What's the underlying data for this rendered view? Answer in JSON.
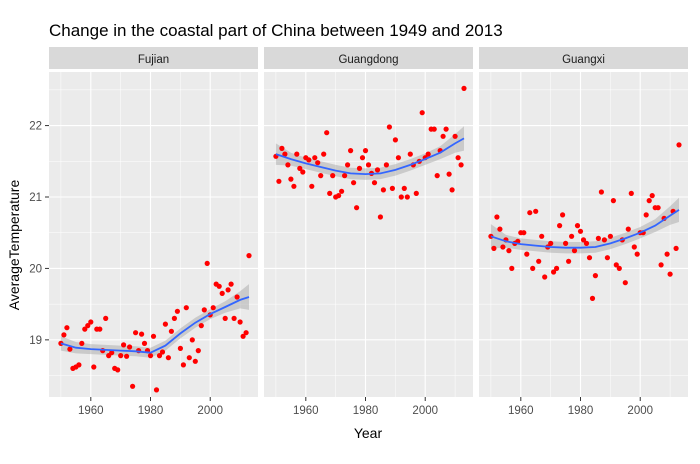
{
  "chart_data": {
    "type": "scatter",
    "title": "Change in the coastal part of China between 1949 and 2013",
    "xlabel": "Year",
    "ylabel": "AverageTemperature",
    "xlim": [
      1946,
      2016
    ],
    "ylim": [
      18.2,
      22.75
    ],
    "x_ticks": [
      1960,
      1980,
      2000
    ],
    "y_ticks": [
      19,
      20,
      21,
      22
    ],
    "grid": true,
    "legend": "none",
    "point_color": "#ff0000",
    "smooth_color": "#3366ff",
    "band_color": "#999999",
    "panel_bg": "#ebebeb",
    "strip_bg": "#d9d9d9",
    "facets": [
      {
        "name": "Fujian",
        "points": [
          [
            1950,
            18.95
          ],
          [
            1951,
            19.07
          ],
          [
            1952,
            19.17
          ],
          [
            1953,
            18.87
          ],
          [
            1954,
            18.6
          ],
          [
            1955,
            18.62
          ],
          [
            1956,
            18.65
          ],
          [
            1957,
            18.95
          ],
          [
            1958,
            19.15
          ],
          [
            1959,
            19.2
          ],
          [
            1960,
            19.25
          ],
          [
            1961,
            18.62
          ],
          [
            1962,
            19.15
          ],
          [
            1963,
            19.15
          ],
          [
            1964,
            18.85
          ],
          [
            1965,
            19.3
          ],
          [
            1966,
            18.78
          ],
          [
            1967,
            18.82
          ],
          [
            1968,
            18.6
          ],
          [
            1969,
            18.58
          ],
          [
            1970,
            18.78
          ],
          [
            1971,
            18.93
          ],
          [
            1972,
            18.77
          ],
          [
            1973,
            18.9
          ],
          [
            1974,
            18.35
          ],
          [
            1975,
            19.1
          ],
          [
            1976,
            18.85
          ],
          [
            1977,
            19.08
          ],
          [
            1978,
            18.95
          ],
          [
            1979,
            18.85
          ],
          [
            1980,
            18.78
          ],
          [
            1981,
            19.05
          ],
          [
            1982,
            18.3
          ],
          [
            1983,
            18.78
          ],
          [
            1984,
            18.83
          ],
          [
            1985,
            19.22
          ],
          [
            1986,
            18.75
          ],
          [
            1987,
            19.12
          ],
          [
            1988,
            19.3
          ],
          [
            1989,
            19.4
          ],
          [
            1990,
            18.88
          ],
          [
            1991,
            18.65
          ],
          [
            1992,
            19.45
          ],
          [
            1993,
            18.75
          ],
          [
            1994,
            19.0
          ],
          [
            1995,
            18.7
          ],
          [
            1996,
            18.85
          ],
          [
            1997,
            19.2
          ],
          [
            1998,
            19.42
          ],
          [
            1999,
            20.07
          ],
          [
            2000,
            19.35
          ],
          [
            2001,
            19.45
          ],
          [
            2002,
            19.78
          ],
          [
            2003,
            19.75
          ],
          [
            2004,
            19.65
          ],
          [
            2005,
            19.3
          ],
          [
            2006,
            19.7
          ],
          [
            2007,
            19.78
          ],
          [
            2008,
            19.3
          ],
          [
            2009,
            19.6
          ],
          [
            2010,
            19.25
          ],
          [
            2011,
            19.05
          ],
          [
            2012,
            19.1
          ],
          [
            2013,
            20.18
          ]
        ],
        "smooth": [
          [
            1950,
            18.95,
            18.85,
            19.05
          ],
          [
            1955,
            18.89,
            18.81,
            18.97
          ],
          [
            1960,
            18.87,
            18.8,
            18.94
          ],
          [
            1965,
            18.86,
            18.79,
            18.93
          ],
          [
            1970,
            18.85,
            18.78,
            18.92
          ],
          [
            1975,
            18.84,
            18.77,
            18.91
          ],
          [
            1980,
            18.82,
            18.75,
            18.89
          ],
          [
            1985,
            18.92,
            18.85,
            18.99
          ],
          [
            1990,
            19.09,
            19.02,
            19.16
          ],
          [
            1995,
            19.24,
            19.17,
            19.31
          ],
          [
            2000,
            19.36,
            19.29,
            19.43
          ],
          [
            2005,
            19.46,
            19.38,
            19.54
          ],
          [
            2010,
            19.56,
            19.44,
            19.68
          ],
          [
            2013,
            19.6,
            19.42,
            19.78
          ]
        ]
      },
      {
        "name": "Guangdong",
        "points": [
          [
            1950,
            21.57
          ],
          [
            1951,
            21.22
          ],
          [
            1952,
            21.68
          ],
          [
            1953,
            21.6
          ],
          [
            1954,
            21.45
          ],
          [
            1955,
            21.25
          ],
          [
            1956,
            21.15
          ],
          [
            1957,
            21.6
          ],
          [
            1958,
            21.4
          ],
          [
            1959,
            21.35
          ],
          [
            1960,
            21.55
          ],
          [
            1961,
            21.52
          ],
          [
            1962,
            21.15
          ],
          [
            1963,
            21.55
          ],
          [
            1964,
            21.48
          ],
          [
            1965,
            21.3
          ],
          [
            1966,
            21.6
          ],
          [
            1967,
            21.9
          ],
          [
            1968,
            21.05
          ],
          [
            1969,
            21.3
          ],
          [
            1970,
            21.0
          ],
          [
            1971,
            21.02
          ],
          [
            1972,
            21.08
          ],
          [
            1973,
            21.3
          ],
          [
            1974,
            21.45
          ],
          [
            1975,
            21.65
          ],
          [
            1976,
            21.2
          ],
          [
            1977,
            20.85
          ],
          [
            1978,
            21.4
          ],
          [
            1979,
            21.55
          ],
          [
            1980,
            21.65
          ],
          [
            1981,
            21.45
          ],
          [
            1982,
            21.33
          ],
          [
            1983,
            21.2
          ],
          [
            1984,
            21.38
          ],
          [
            1985,
            20.72
          ],
          [
            1986,
            21.1
          ],
          [
            1987,
            21.45
          ],
          [
            1988,
            21.98
          ],
          [
            1989,
            21.12
          ],
          [
            1990,
            21.8
          ],
          [
            1991,
            21.55
          ],
          [
            1992,
            21.0
          ],
          [
            1993,
            21.12
          ],
          [
            1994,
            21.0
          ],
          [
            1995,
            21.6
          ],
          [
            1996,
            21.45
          ],
          [
            1997,
            21.05
          ],
          [
            1998,
            21.5
          ],
          [
            1999,
            22.18
          ],
          [
            2000,
            21.55
          ],
          [
            2001,
            21.6
          ],
          [
            2002,
            21.95
          ],
          [
            2003,
            21.95
          ],
          [
            2004,
            21.3
          ],
          [
            2005,
            21.65
          ],
          [
            2006,
            21.85
          ],
          [
            2007,
            21.95
          ],
          [
            2008,
            21.32
          ],
          [
            2009,
            21.1
          ],
          [
            2010,
            21.85
          ],
          [
            2011,
            21.55
          ],
          [
            2012,
            21.45
          ],
          [
            2013,
            22.52
          ]
        ],
        "smooth": [
          [
            1950,
            21.6,
            21.45,
            21.75
          ],
          [
            1955,
            21.53,
            21.44,
            21.62
          ],
          [
            1960,
            21.47,
            21.39,
            21.55
          ],
          [
            1965,
            21.42,
            21.34,
            21.5
          ],
          [
            1970,
            21.37,
            21.29,
            21.45
          ],
          [
            1975,
            21.33,
            21.25,
            21.41
          ],
          [
            1980,
            21.32,
            21.24,
            21.4
          ],
          [
            1985,
            21.33,
            21.25,
            21.41
          ],
          [
            1990,
            21.38,
            21.3,
            21.46
          ],
          [
            1995,
            21.45,
            21.37,
            21.53
          ],
          [
            2000,
            21.53,
            21.45,
            21.61
          ],
          [
            2005,
            21.62,
            21.53,
            21.71
          ],
          [
            2010,
            21.75,
            21.62,
            21.88
          ],
          [
            2013,
            21.82,
            21.65,
            21.99
          ]
        ]
      },
      {
        "name": "Guangxi",
        "points": [
          [
            1950,
            20.45
          ],
          [
            1951,
            20.28
          ],
          [
            1952,
            20.72
          ],
          [
            1953,
            20.55
          ],
          [
            1954,
            20.3
          ],
          [
            1955,
            20.4
          ],
          [
            1956,
            20.25
          ],
          [
            1957,
            20.0
          ],
          [
            1958,
            20.35
          ],
          [
            1959,
            20.38
          ],
          [
            1960,
            20.5
          ],
          [
            1961,
            20.5
          ],
          [
            1962,
            20.2
          ],
          [
            1963,
            20.78
          ],
          [
            1964,
            20.0
          ],
          [
            1965,
            20.8
          ],
          [
            1966,
            20.1
          ],
          [
            1967,
            20.45
          ],
          [
            1968,
            19.88
          ],
          [
            1969,
            20.3
          ],
          [
            1970,
            20.35
          ],
          [
            1971,
            19.95
          ],
          [
            1972,
            20.0
          ],
          [
            1973,
            20.6
          ],
          [
            1974,
            20.75
          ],
          [
            1975,
            20.35
          ],
          [
            1976,
            20.1
          ],
          [
            1977,
            20.45
          ],
          [
            1978,
            20.25
          ],
          [
            1979,
            20.6
          ],
          [
            1980,
            20.52
          ],
          [
            1981,
            20.4
          ],
          [
            1982,
            20.35
          ],
          [
            1983,
            20.15
          ],
          [
            1984,
            19.58
          ],
          [
            1985,
            19.9
          ],
          [
            1986,
            20.42
          ],
          [
            1987,
            21.07
          ],
          [
            1988,
            20.4
          ],
          [
            1989,
            20.15
          ],
          [
            1990,
            20.45
          ],
          [
            1991,
            20.95
          ],
          [
            1992,
            20.05
          ],
          [
            1993,
            20.0
          ],
          [
            1994,
            20.4
          ],
          [
            1995,
            19.8
          ],
          [
            1996,
            20.55
          ],
          [
            1997,
            21.05
          ],
          [
            1998,
            20.3
          ],
          [
            1999,
            20.2
          ],
          [
            2000,
            20.5
          ],
          [
            2001,
            20.5
          ],
          [
            2002,
            20.75
          ],
          [
            2003,
            20.95
          ],
          [
            2004,
            21.02
          ],
          [
            2005,
            20.85
          ],
          [
            2006,
            20.85
          ],
          [
            2007,
            20.05
          ],
          [
            2008,
            20.7
          ],
          [
            2009,
            20.2
          ],
          [
            2010,
            19.92
          ],
          [
            2011,
            20.8
          ],
          [
            2012,
            20.28
          ],
          [
            2013,
            21.73
          ]
        ],
        "smooth": [
          [
            1950,
            20.45,
            20.28,
            20.62
          ],
          [
            1955,
            20.38,
            20.29,
            20.47
          ],
          [
            1960,
            20.34,
            20.26,
            20.42
          ],
          [
            1965,
            20.32,
            20.24,
            20.4
          ],
          [
            1970,
            20.3,
            20.22,
            20.38
          ],
          [
            1975,
            20.29,
            20.21,
            20.37
          ],
          [
            1980,
            20.29,
            20.21,
            20.37
          ],
          [
            1985,
            20.3,
            20.22,
            20.38
          ],
          [
            1990,
            20.35,
            20.27,
            20.43
          ],
          [
            1995,
            20.42,
            20.34,
            20.5
          ],
          [
            2000,
            20.5,
            20.42,
            20.58
          ],
          [
            2005,
            20.6,
            20.51,
            20.69
          ],
          [
            2010,
            20.74,
            20.61,
            20.87
          ],
          [
            2013,
            20.82,
            20.65,
            20.99
          ]
        ]
      }
    ]
  }
}
